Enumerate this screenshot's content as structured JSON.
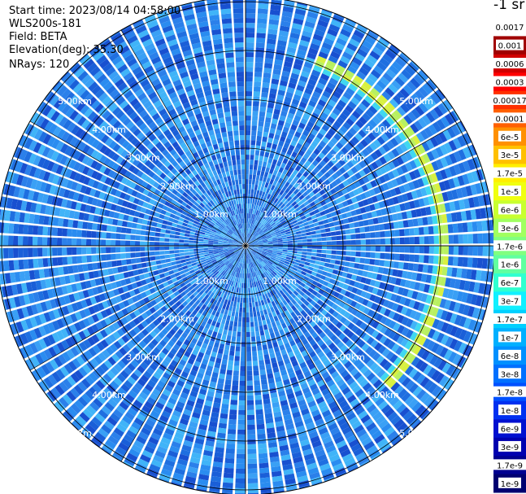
{
  "header": {
    "start_time": "Start time: 2023/08/14 04:58:00",
    "instrument": "WLS200s-181",
    "field": "Field: BETA",
    "elevation": "Elevation(deg): 35.30",
    "nrays": "NRays: 120"
  },
  "colorbar": {
    "unit_label": "-1 sr",
    "ticks": [
      "0.0017",
      "0.001",
      "0.0006",
      "0.0003",
      "0.00017",
      "0.0001",
      "6e-5",
      "3e-5",
      "1.7e-5",
      "1e-5",
      "6e-6",
      "3e-6",
      "1.7e-6",
      "1e-6",
      "6e-7",
      "3e-7",
      "1.7e-7",
      "1e-7",
      "6e-8",
      "3e-8",
      "1.7e-8",
      "1e-8",
      "6e-9",
      "3e-9",
      "1.7e-9",
      "1e-9"
    ],
    "colors": [
      "#ffffff",
      "#a00000",
      "#d00000",
      "#ff0000",
      "#ff3000",
      "#ff6000",
      "#ff9000",
      "#ffc000",
      "#ffee00",
      "#f0ff10",
      "#c8ff30",
      "#a0ff60",
      "#80ff80",
      "#60ffa0",
      "#30ffd0",
      "#10f0ff",
      "#00d0ff",
      "#00b0ff",
      "#0090ff",
      "#0070ff",
      "#0050ff",
      "#0030f0",
      "#0010d0",
      "#0000b0",
      "#000090",
      "#000070"
    ]
  },
  "chart_data": {
    "type": "heatmap",
    "projection": "polar PPI",
    "field": "BETA",
    "nrays": 120,
    "range_rings_km": [
      1.0,
      2.0,
      3.0,
      4.0,
      5.0
    ],
    "range_ring_labels": [
      "1.00km",
      "2.00km",
      "3.00km",
      "4.00km",
      "5.00km"
    ],
    "max_range_km": 5.1,
    "background_level": "1e-8 to 6e-8",
    "enhanced_arc": {
      "range_km": 4.05,
      "azimuth_deg": [
        20,
        135
      ],
      "level": "1e-6 to 1.7e-5"
    },
    "spokes_deg": [
      0,
      30,
      60,
      90,
      120,
      150,
      180,
      210,
      240,
      270,
      300,
      330
    ],
    "grid": true
  }
}
